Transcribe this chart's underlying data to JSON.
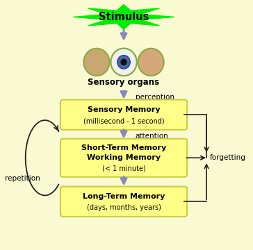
{
  "background_color": "#FAFAD2",
  "fig_width": 3.64,
  "fig_height": 3.6,
  "dpi": 100,
  "stimulus_text": "Stimulus",
  "stimulus_star_color": "#00EE00",
  "sensory_organs_text": "Sensory organs",
  "perception_text": "perception",
  "attention_text": "attention",
  "repetition_text": "repetition",
  "forgetting_text": "forgetting",
  "box1_title": "Sensory Memory",
  "box1_sub": "(millisecond - 1 second)",
  "box2_line1": "Short-Term Memory",
  "box2_line2": "Working Memory",
  "box2_sub": "(< 1 minute)",
  "box3_title": "Long-Term Memory",
  "box3_sub": "(days, months, years)",
  "box_facecolor": "#FFFF88",
  "box_edgecolor": "#CCCC44",
  "arrow_color": "#8888BB",
  "black_color": "#222222",
  "title_fontsize": 8.0,
  "sub_fontsize": 7.0,
  "label_fontsize": 7.5,
  "so_fontsize": 8.5,
  "stim_fontsize": 10.5
}
